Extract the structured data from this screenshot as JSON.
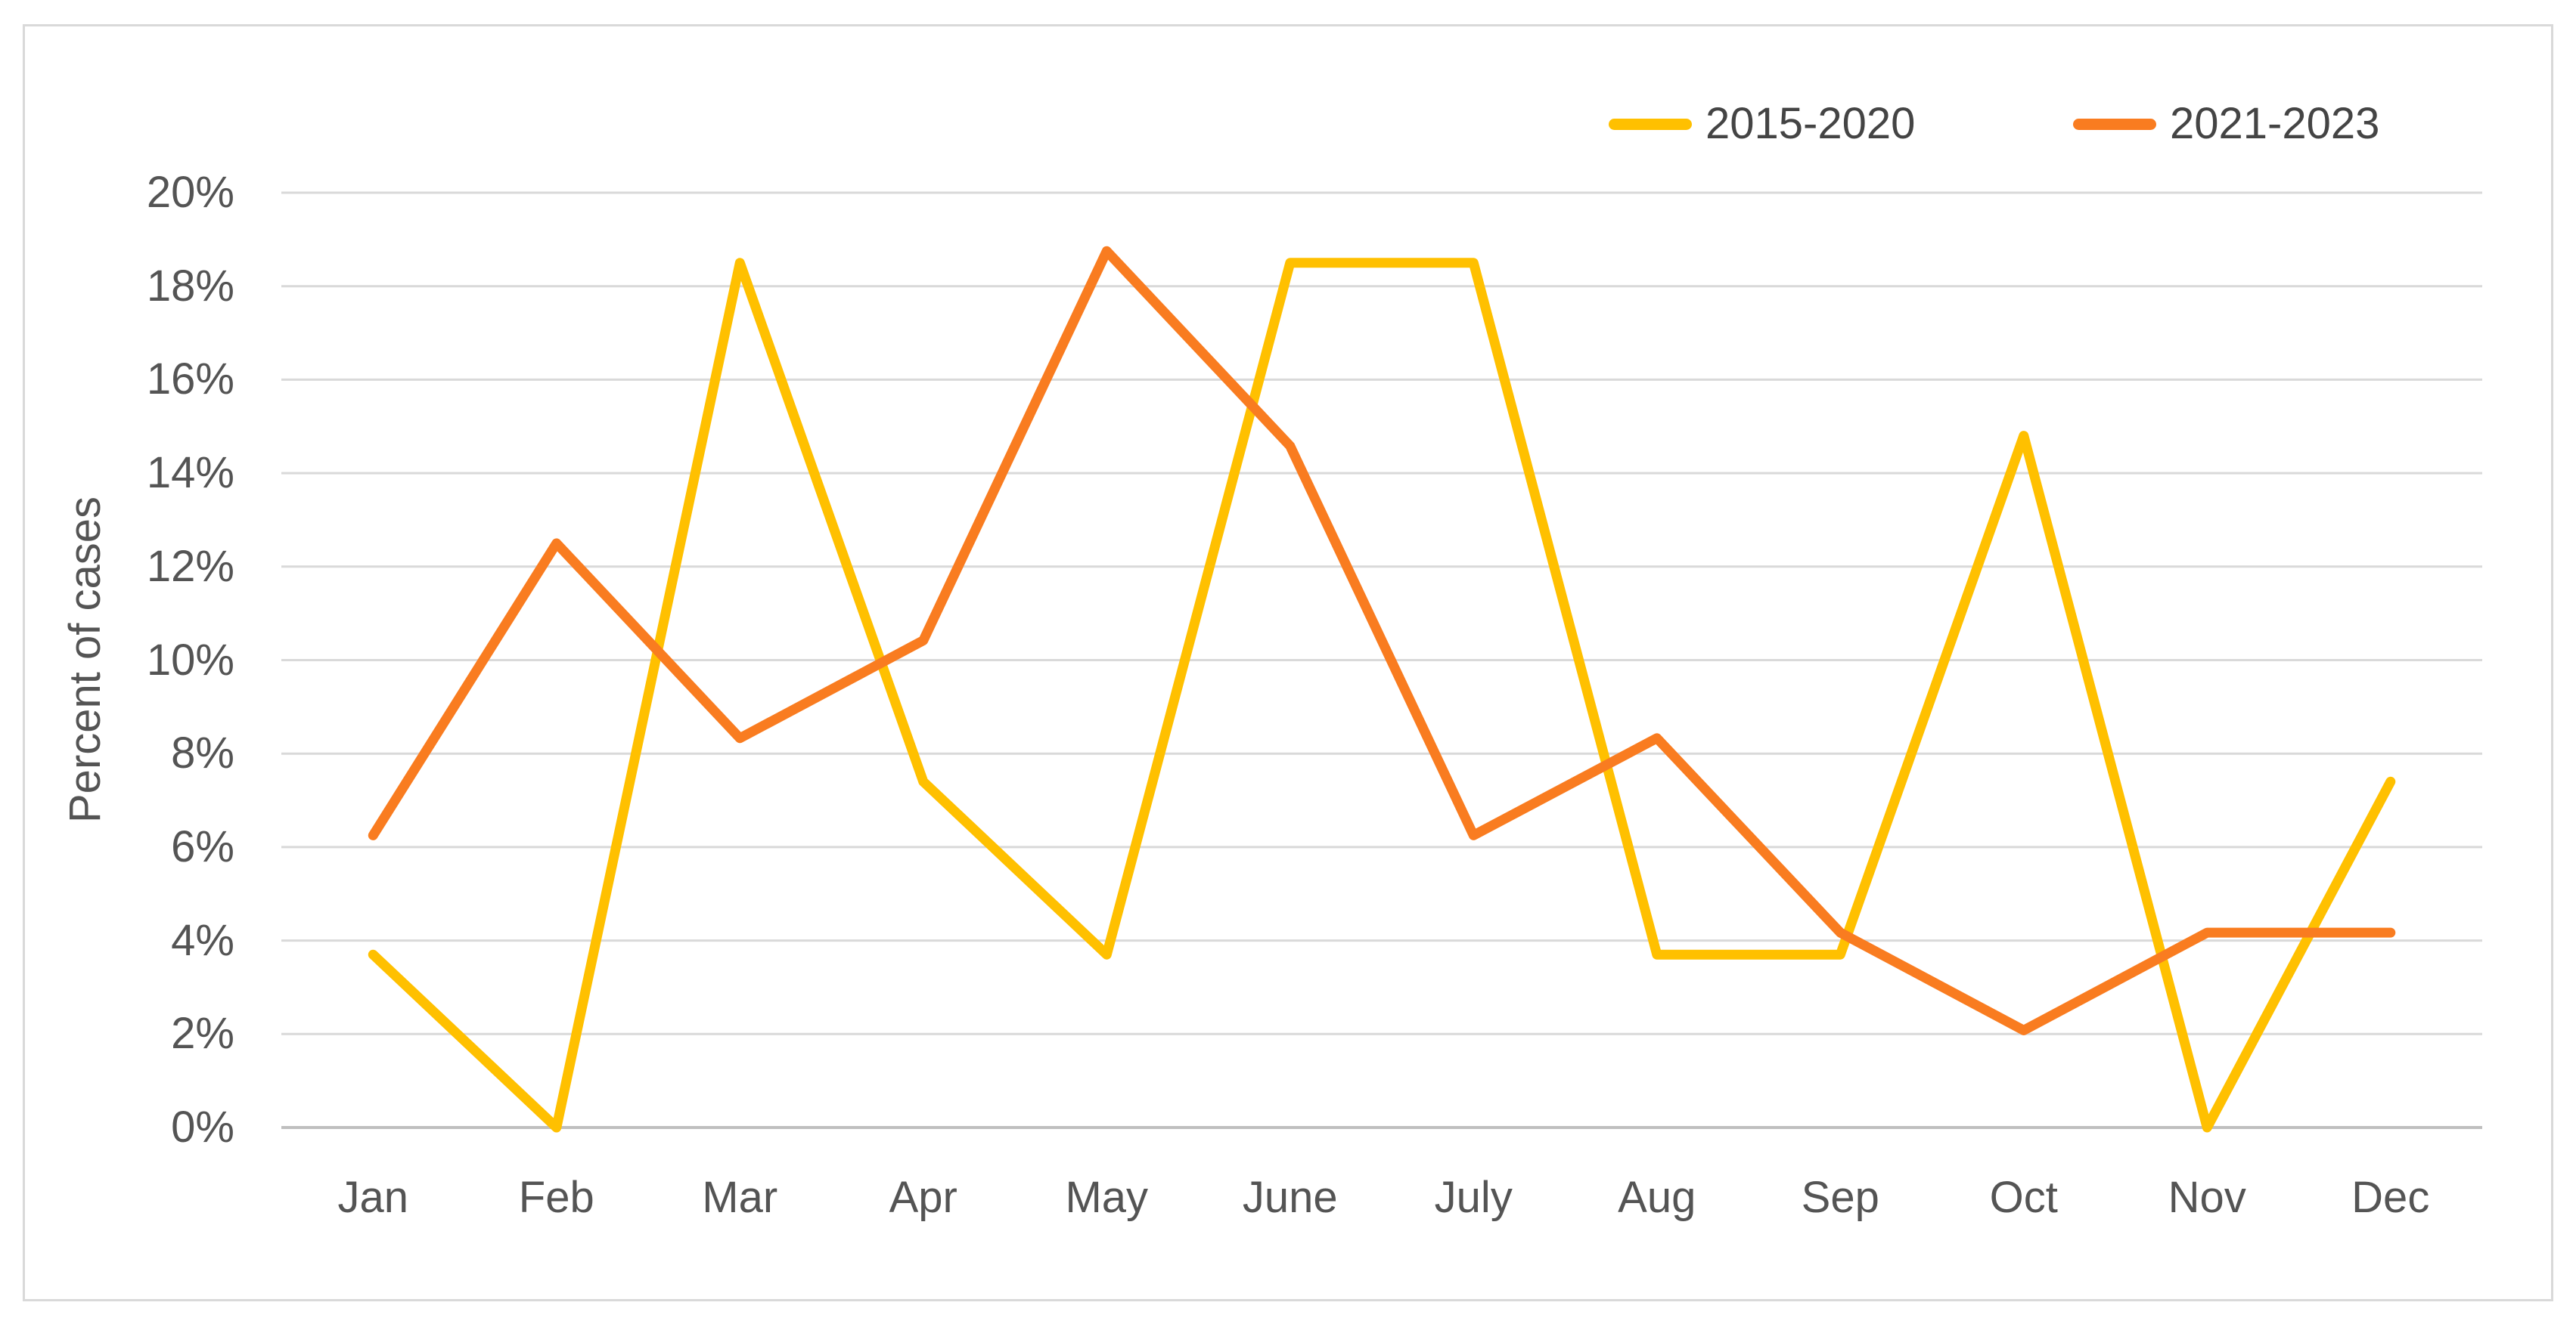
{
  "chart_data": {
    "type": "line",
    "title": "",
    "xlabel": "",
    "ylabel": "Percent of cases",
    "categories": [
      "Jan",
      "Feb",
      "Mar",
      "Apr",
      "May",
      "June",
      "July",
      "Aug",
      "Sep",
      "Oct",
      "Nov",
      "Dec"
    ],
    "series": [
      {
        "name": "2015-2020",
        "color": "#FFC000",
        "values": [
          3.7,
          0.0,
          18.5,
          7.4,
          3.7,
          18.5,
          18.5,
          3.7,
          3.7,
          14.8,
          0.0,
          7.4
        ]
      },
      {
        "name": "2021-2023",
        "color": "#F97C20",
        "values": [
          6.25,
          12.5,
          8.33,
          10.42,
          18.75,
          14.58,
          6.25,
          8.33,
          4.17,
          2.08,
          4.17,
          4.17
        ]
      }
    ],
    "ylim": [
      0,
      20
    ],
    "ytick_step": 2,
    "ytick_labels": [
      "0%",
      "2%",
      "4%",
      "6%",
      "8%",
      "10%",
      "12%",
      "14%",
      "16%",
      "18%",
      "20%"
    ],
    "grid": "horizontal",
    "legend_position": "top-right"
  },
  "style": {
    "gridline_color": "#D9D9D9",
    "axis_line_color": "#BFBFBF",
    "frame_color": "#D9D9D9",
    "label_color": "#545454",
    "background": "#FFFFFF"
  }
}
